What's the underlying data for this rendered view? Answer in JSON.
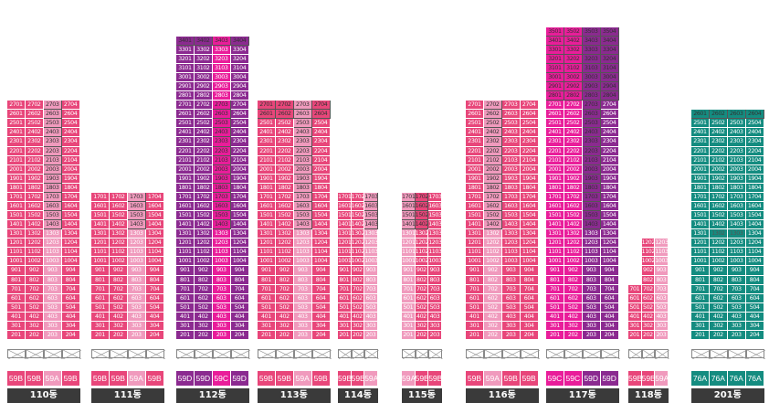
{
  "buildings": [
    {
      "label": "110동",
      "columns": [
        {
          "type": "59B",
          "base": "01",
          "top": 27,
          "min": 2
        },
        {
          "type": "59B",
          "base": "02",
          "top": 27,
          "min": 2
        },
        {
          "type": "59A",
          "base": "03",
          "top": 27,
          "min": 2,
          "light": true
        },
        {
          "type": "59B",
          "base": "04",
          "top": 27,
          "min": 2
        }
      ],
      "whites": [
        "2703",
        "2603",
        "2503",
        "2403",
        "2303",
        "2203",
        "2103",
        "2003",
        "1903",
        "1803",
        "1703",
        "1603",
        "1503",
        "1403"
      ]
    },
    {
      "label": "111동",
      "columns": [
        {
          "type": "59B",
          "base": "01",
          "top": 17,
          "min": 2
        },
        {
          "type": "59B",
          "base": "02",
          "top": 17,
          "min": 2
        },
        {
          "type": "59A",
          "base": "03",
          "top": 17,
          "min": 2,
          "light": true
        },
        {
          "type": "59B",
          "base": "04",
          "top": 17,
          "min": 2
        }
      ],
      "whites": [
        "1703",
        "1603",
        "1503",
        "1403"
      ]
    },
    {
      "label": "112동",
      "columns": [
        {
          "type": "59D",
          "base": "01",
          "top": 34,
          "min": 2,
          "purple": true
        },
        {
          "type": "59D",
          "base": "02",
          "top": 34,
          "min": 2,
          "purple": true
        },
        {
          "type": "59C",
          "base": "03",
          "top": 34,
          "min": 2,
          "magenta": true
        },
        {
          "type": "59D",
          "base": "04",
          "top": 34,
          "min": 2,
          "purple": true
        }
      ],
      "whites": [
        "3401",
        "3402",
        "3403",
        "3404",
        "2703",
        "2603",
        "2503",
        "2403",
        "2303",
        "2203",
        "2103",
        "2003",
        "1903",
        "1803",
        "1703",
        "1603",
        "1503",
        "1403"
      ]
    },
    {
      "label": "113동",
      "columns": [
        {
          "type": "59B",
          "base": "01",
          "top": 27,
          "min": 2
        },
        {
          "type": "59B",
          "base": "02",
          "top": 27,
          "min": 2
        },
        {
          "type": "59A",
          "base": "03",
          "top": 27,
          "min": 2,
          "light": true
        },
        {
          "type": "59B",
          "base": "04",
          "top": 27,
          "min": 2
        }
      ],
      "whites": [
        "2701",
        "2702",
        "2703",
        "2704",
        "2601",
        "2602",
        "2603",
        "2604",
        "2503",
        "2403",
        "2303",
        "2203",
        "2103",
        "2003",
        "1903",
        "1803",
        "1703",
        "1603",
        "1503",
        "1403"
      ]
    },
    {
      "label": "114동",
      "columns": [
        {
          "type": "59B",
          "base": "01",
          "top": 17,
          "min": 2
        },
        {
          "type": "59B",
          "base": "02",
          "top": 17,
          "min": 2
        },
        {
          "type": "59A",
          "base": "03",
          "top": 17,
          "min": 2,
          "light": true
        }
      ],
      "whites": [
        "1703",
        "1603",
        "1503",
        "1403"
      ]
    },
    {
      "label": "115동",
      "columns": [
        {
          "type": "59A",
          "base": "01",
          "top": 17,
          "min": 2,
          "light": true
        },
        {
          "type": "59B",
          "base": "02",
          "top": 17,
          "min": 2
        },
        {
          "type": "59B",
          "base": "03",
          "top": 17,
          "min": 2
        }
      ],
      "whites": [
        "1701",
        "1601",
        "1501",
        "1401",
        "1702",
        "1602",
        "1502",
        "1402"
      ],
      "greys": [
        "901",
        "801"
      ]
    },
    {
      "label": "116동",
      "columns": [
        {
          "type": "59B",
          "base": "01",
          "top": 27,
          "min": 2
        },
        {
          "type": "59A",
          "base": "02",
          "top": 27,
          "min": 2,
          "light": true
        },
        {
          "type": "59B",
          "base": "03",
          "top": 27,
          "min": 2
        },
        {
          "type": "59B",
          "base": "04",
          "top": 27,
          "min": 2
        }
      ],
      "whites": [
        "2702",
        "2602",
        "2502",
        "2402",
        "2302",
        "2202",
        "2102",
        "2002",
        "1902",
        "1802",
        "1702",
        "1602",
        "1502",
        "1402"
      ]
    },
    {
      "label": "117동",
      "columns": [
        {
          "type": "59C",
          "base": "01",
          "top": 35,
          "min": 2,
          "magenta": true
        },
        {
          "type": "59C",
          "base": "02",
          "top": 35,
          "min": 2,
          "magenta": true
        },
        {
          "type": "59D",
          "base": "03",
          "top": 35,
          "min": 2,
          "purple": true
        },
        {
          "type": "59D",
          "base": "04",
          "top": 35,
          "min": 2,
          "purple": true
        }
      ],
      "whites": [
        "3501",
        "3502",
        "3503",
        "3504",
        "3401",
        "3402",
        "3403",
        "3404",
        "3301",
        "3302",
        "3303",
        "3304",
        "3201",
        "3202",
        "3203",
        "3204",
        "3101",
        "3102",
        "3103",
        "3104",
        "3001",
        "3002",
        "3003",
        "3004",
        "2901",
        "2902",
        "2903",
        "2904",
        "2801",
        "2802",
        "2803",
        "2804",
        "2703",
        "2603",
        "2503",
        "2403",
        "2303",
        "2203",
        "2103",
        "2003",
        "1903",
        "1803",
        "1703",
        "1603",
        "1503",
        "1403"
      ],
      "darks": [
        "2101",
        "2001"
      ]
    },
    {
      "label": "118동",
      "columns": [
        {
          "type": "59B",
          "base": "01",
          "top": 7,
          "min": 2
        },
        {
          "type": "59B",
          "base": "02",
          "top": 12,
          "min": 2
        },
        {
          "type": "59A",
          "base": "03",
          "top": 12,
          "min": 2,
          "light": true
        }
      ],
      "whites": []
    },
    {
      "label": "201동",
      "columns": [
        {
          "type": "76A",
          "base": "01",
          "top": 26,
          "min": 2,
          "teal": true
        },
        {
          "type": "76A",
          "base": "02",
          "top": 26,
          "min": 2,
          "teal": true
        },
        {
          "type": "76A",
          "base": "03",
          "top": 26,
          "min": 2,
          "teal": true
        },
        {
          "type": "76A",
          "base": "04",
          "top": 26,
          "min": 2,
          "teal": true
        }
      ],
      "whites": [
        "2601",
        "2602",
        "2603",
        "2604"
      ],
      "lights": [
        "1302",
        "1303"
      ]
    }
  ],
  "colors": {
    "pink": "#e8467a",
    "light_pink": "#f09abd",
    "purple": "#8b2a90",
    "magenta": "#e91d9a",
    "teal": "#148c80",
    "label_bg": "#3a3a3a"
  }
}
